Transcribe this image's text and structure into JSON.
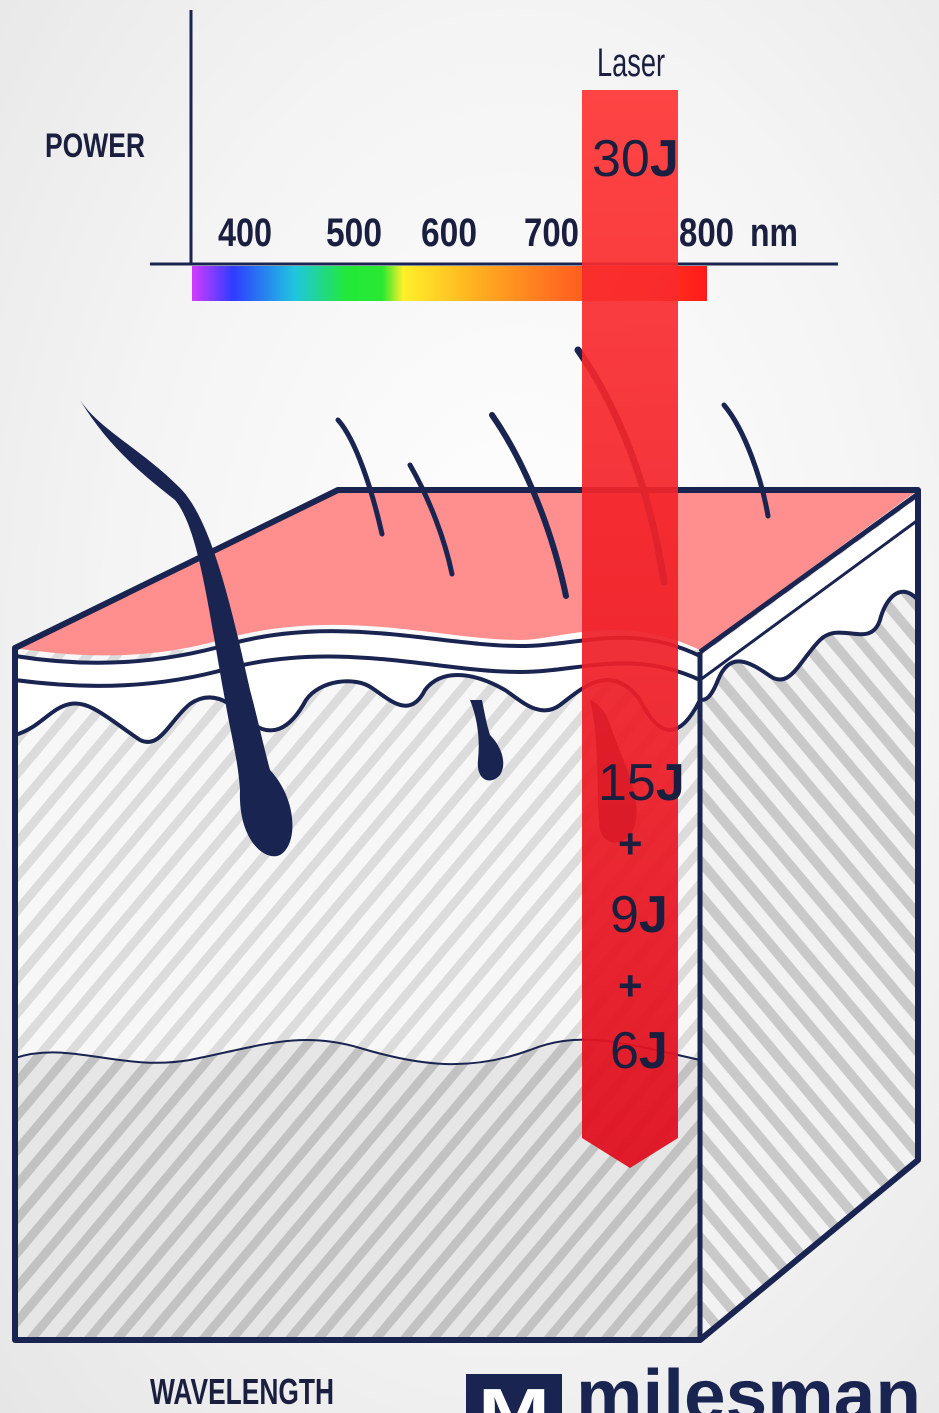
{
  "axis": {
    "y_label": "POWER",
    "x_label": "WAVELENGTH",
    "ticks": [
      "400",
      "500",
      "600",
      "700",
      "800"
    ],
    "unit": "nm"
  },
  "laser": {
    "label": "Laser",
    "surface_energy": "30",
    "unit": "J",
    "layer_energies": [
      "15",
      "9",
      "6"
    ],
    "plus": "+"
  },
  "brand": {
    "logo_letter": "M",
    "name": "milesman"
  },
  "colors": {
    "navy": "#1a2450",
    "laser_red": "#ff2d2d",
    "skin_top": "#ff8e8e",
    "hatch": "#cfcfcf"
  }
}
